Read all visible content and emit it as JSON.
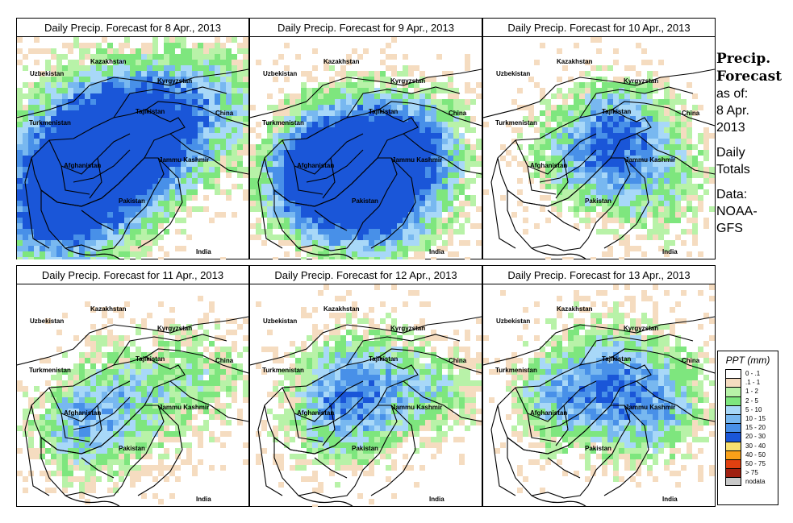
{
  "panels": [
    {
      "title": "Daily Precip. Forecast for  8 Apr., 2013"
    },
    {
      "title": "Daily Precip. Forecast for  9 Apr., 2013"
    },
    {
      "title": "Daily Precip. Forecast for  10 Apr., 2013"
    },
    {
      "title": "Daily Precip. Forecast for  11 Apr., 2013"
    },
    {
      "title": "Daily Precip. Forecast for  12 Apr., 2013"
    },
    {
      "title": "Daily Precip. Forecast for  13 Apr., 2013"
    }
  ],
  "map_labels": {
    "uzbekistan": "Uzbekistan",
    "kazakhstan": "Kazakhstan",
    "kyrgyzstan": "Kyrgyzstan",
    "tajikistan": "Tajikistan",
    "china": "China",
    "turkmenistan": "Turkmenistan",
    "afghanistan": "Afghanistan",
    "jammu": "Jammu Kashmir",
    "pakistan": "Pakistan",
    "india": "India"
  },
  "sidebar": {
    "line1": "Precip.",
    "line2": "Forecast",
    "line3": "as of:",
    "line4": "8 Apr.",
    "line5": "2013",
    "line6": "Daily",
    "line7": "Totals",
    "line8": "Data:",
    "line9": "NOAA-",
    "line10": "GFS"
  },
  "legend": {
    "title": "PPT (mm)",
    "items": [
      {
        "label": "0 - .1",
        "color": "#ffffff"
      },
      {
        "label": ".1 - 1",
        "color": "#f5dcc0"
      },
      {
        "label": "1 - 2",
        "color": "#b8f2a8"
      },
      {
        "label": "2 - 5",
        "color": "#7ee67e"
      },
      {
        "label": "5 - 10",
        "color": "#a8d8f8"
      },
      {
        "label": "10 - 15",
        "color": "#78b8f0"
      },
      {
        "label": "15 - 20",
        "color": "#4890e8"
      },
      {
        "label": "20 - 30",
        "color": "#1a56d8"
      },
      {
        "label": "30 - 40",
        "color": "#f8e070"
      },
      {
        "label": "40 - 50",
        "color": "#f8a018"
      },
      {
        "label": "50 - 75",
        "color": "#e04010"
      },
      {
        "label": "> 75",
        "color": "#a02010"
      },
      {
        "label": "nodata",
        "color": "#c8c8c8"
      }
    ]
  },
  "precip_intensity": [
    {
      "date": "8 Apr., 2013",
      "level": "high"
    },
    {
      "date": "9 Apr., 2013",
      "level": "high"
    },
    {
      "date": "10 Apr., 2013",
      "level": "medium"
    },
    {
      "date": "11 Apr., 2013",
      "level": "medium"
    },
    {
      "date": "12 Apr., 2013",
      "level": "medium"
    },
    {
      "date": "13 Apr., 2013",
      "level": "medium"
    }
  ]
}
